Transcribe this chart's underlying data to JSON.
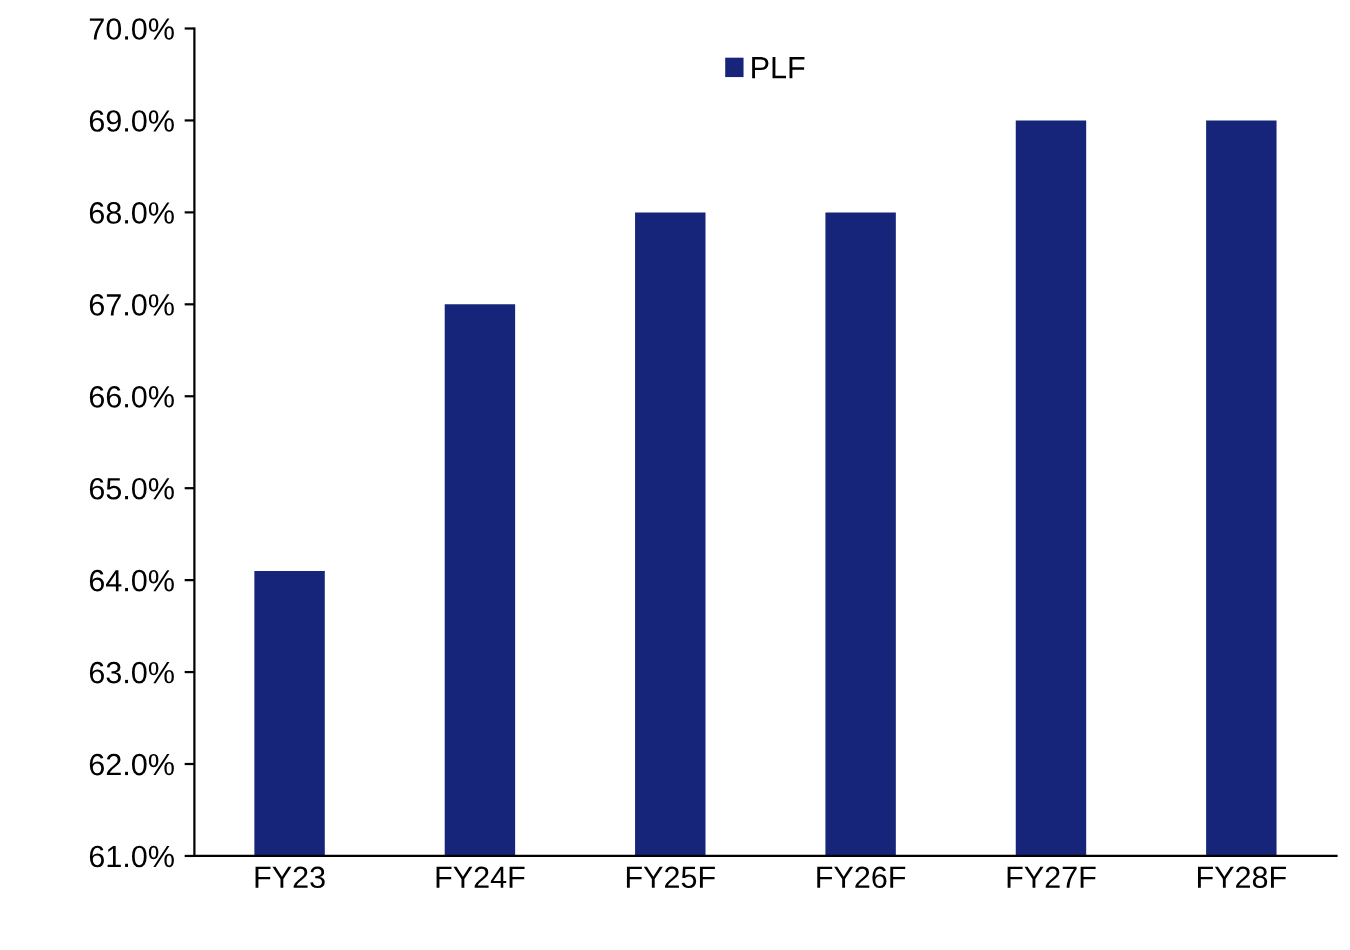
{
  "chart_data": {
    "type": "bar",
    "categories": [
      "FY23",
      "FY24F",
      "FY25F",
      "FY26F",
      "FY27F",
      "FY28F"
    ],
    "series": [
      {
        "name": "PLF",
        "color": "#16247a",
        "values": [
          64.1,
          67,
          68,
          68,
          69,
          69
        ]
      }
    ],
    "ylim": [
      61,
      70
    ],
    "yticks": [
      {
        "value": 61,
        "label": "61.0%"
      },
      {
        "value": 62,
        "label": "62.0%"
      },
      {
        "value": 63,
        "label": "63.0%"
      },
      {
        "value": 64,
        "label": "64.0%"
      },
      {
        "value": 65,
        "label": "65.0%"
      },
      {
        "value": 66,
        "label": "66.0%"
      },
      {
        "value": 67,
        "label": "67.0%"
      },
      {
        "value": 68,
        "label": "68.0%"
      },
      {
        "value": 69,
        "label": "69.0%"
      },
      {
        "value": 70,
        "label": "70.0%"
      }
    ],
    "grid": false,
    "legend": "top"
  }
}
